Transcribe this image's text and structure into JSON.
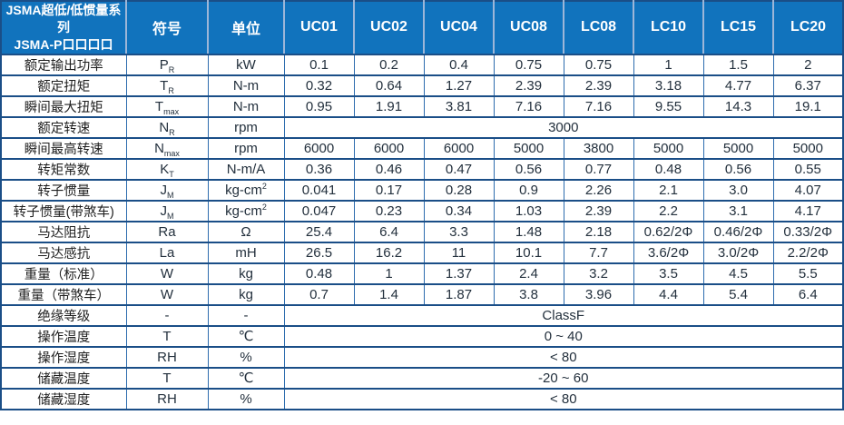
{
  "colors": {
    "header_bg": "#1173bd",
    "header_text": "#ffffff",
    "header_separator": "#9db6d8",
    "border_horizontal": "#1a4e87",
    "border_vertical": "#2d6cae",
    "body_text": "#23303d",
    "label_text": "#1f1f1f",
    "background": "#ffffff"
  },
  "table": {
    "header": {
      "title_line1": "JSMA超低/低惯量系列",
      "title_line2": "JSMA-P口口口口",
      "symbol_col": "符号",
      "unit_col": "单位",
      "models": [
        "UC01",
        "UC02",
        "UC04",
        "UC08",
        "LC08",
        "LC10",
        "LC15",
        "LC20"
      ]
    },
    "rows": [
      {
        "label": "额定输出功率",
        "symbol": "P",
        "sub": "R",
        "unit": "kW",
        "values": [
          "0.1",
          "0.2",
          "0.4",
          "0.75",
          "0.75",
          "1",
          "1.5",
          "2"
        ]
      },
      {
        "label": "额定扭矩",
        "symbol": "T",
        "sub": "R",
        "unit": "N-m",
        "values": [
          "0.32",
          "0.64",
          "1.27",
          "2.39",
          "2.39",
          "3.18",
          "4.77",
          "6.37"
        ]
      },
      {
        "label": "瞬间最大扭矩",
        "symbol": "T",
        "sub": "max",
        "unit": "N-m",
        "values": [
          "0.95",
          "1.91",
          "3.81",
          "7.16",
          "7.16",
          "9.55",
          "14.3",
          "19.1"
        ]
      },
      {
        "label": "额定转速",
        "symbol": "N",
        "sub": "R",
        "unit": "rpm",
        "merged": "3000"
      },
      {
        "label": "瞬间最高转速",
        "symbol": "N",
        "sub": "max",
        "unit": "rpm",
        "values": [
          "6000",
          "6000",
          "6000",
          "5000",
          "3800",
          "5000",
          "5000",
          "5000"
        ]
      },
      {
        "label": "转矩常数",
        "symbol": "K",
        "sub": "T",
        "unit": "N-m/A",
        "values": [
          "0.36",
          "0.46",
          "0.47",
          "0.56",
          "0.77",
          "0.48",
          "0.56",
          "0.55"
        ]
      },
      {
        "label": "转子惯量",
        "symbol": "J",
        "sub": "M",
        "unit": "kg-cm",
        "unit_sup": "2",
        "values": [
          "0.041",
          "0.17",
          "0.28",
          "0.9",
          "2.26",
          "2.1",
          "3.0",
          "4.07"
        ]
      },
      {
        "label": "转子惯量(带煞车)",
        "symbol": "J",
        "sub": "M",
        "unit": "kg-cm",
        "unit_sup": "2",
        "values": [
          "0.047",
          "0.23",
          "0.34",
          "1.03",
          "2.39",
          "2.2",
          "3.1",
          "4.17"
        ]
      },
      {
        "label": "马达阻抗",
        "symbol": "Ra",
        "unit": "Ω",
        "values": [
          "25.4",
          "6.4",
          "3.3",
          "1.48",
          "2.18",
          "0.62/2Φ",
          "0.46/2Φ",
          "0.33/2Φ"
        ]
      },
      {
        "label": "马达感抗",
        "symbol": "La",
        "unit": "mH",
        "values": [
          "26.5",
          "16.2",
          "11",
          "10.1",
          "7.7",
          "3.6/2Φ",
          "3.0/2Φ",
          "2.2/2Φ"
        ]
      },
      {
        "label": "重量（标准）",
        "symbol": "W",
        "unit": "kg",
        "values": [
          "0.48",
          "1",
          "1.37",
          "2.4",
          "3.2",
          "3.5",
          "4.5",
          "5.5"
        ]
      },
      {
        "label": "重量（带煞车）",
        "symbol": "W",
        "unit": "kg",
        "values": [
          "0.7",
          "1.4",
          "1.87",
          "3.8",
          "3.96",
          "4.4",
          "5.4",
          "6.4"
        ]
      },
      {
        "label": "绝缘等级",
        "symbol": "-",
        "unit": "-",
        "merged": "ClassF"
      },
      {
        "label": "操作温度",
        "symbol": "T",
        "unit": "℃",
        "merged": "0 ~ 40"
      },
      {
        "label": "操作湿度",
        "symbol": "RH",
        "unit": "%",
        "merged": "< 80"
      },
      {
        "label": "储藏温度",
        "symbol": "T",
        "unit": "℃",
        "merged": "-20 ~ 60"
      },
      {
        "label": "储藏湿度",
        "symbol": "RH",
        "unit": "%",
        "merged": "< 80"
      }
    ]
  }
}
